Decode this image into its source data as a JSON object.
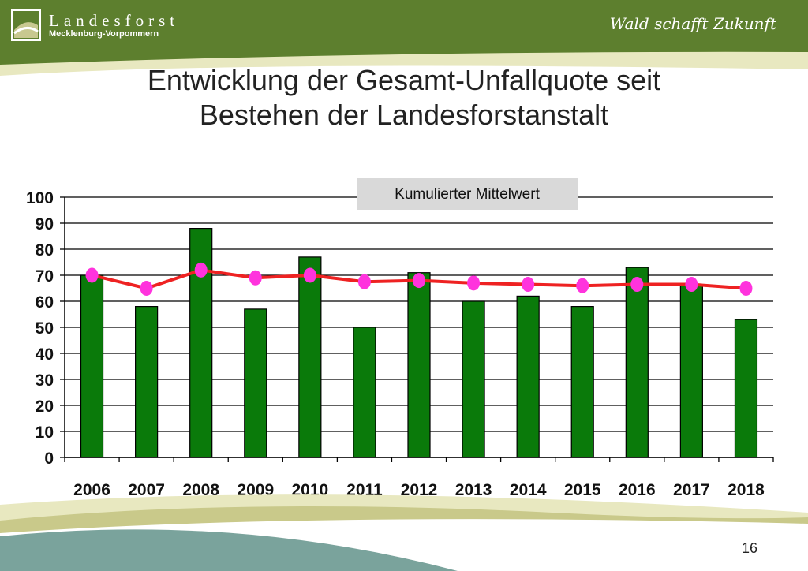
{
  "header": {
    "brand": "Landesforst",
    "brand_sub": "Mecklenburg-Vorpommern",
    "slogan": "Wald schafft Zukunft",
    "logo_icon": "landesforst-logo-icon"
  },
  "title": {
    "line1": "Entwicklung der Gesamt-Unfallquote seit",
    "line2": "Bestehen der Landesforstanstalt"
  },
  "page_number": "16",
  "colors": {
    "header_green": "#5d7f2e",
    "bar_fill": "#0a7a0a",
    "line": "#ee2222",
    "marker": "#ff33dd",
    "legend_bg": "#d9d9d9"
  },
  "chart_data": {
    "type": "bar",
    "categories": [
      "2006",
      "2007",
      "2008",
      "2009",
      "2010",
      "2011",
      "2012",
      "2013",
      "2014",
      "2015",
      "2016",
      "2017",
      "2018"
    ],
    "series": [
      {
        "values": [
          70,
          58,
          88,
          57,
          77,
          50,
          71,
          60,
          62,
          58,
          73,
          66,
          53
        ]
      },
      {
        "name": "Kumulierter Mittelwert",
        "render": "line",
        "values": [
          70,
          65,
          72,
          69,
          70,
          67.5,
          68,
          67,
          66.5,
          66,
          66.5,
          66.5,
          65
        ]
      }
    ],
    "ylim": [
      0,
      100
    ],
    "yticks": [
      0,
      10,
      20,
      30,
      40,
      50,
      60,
      70,
      80,
      90,
      100
    ],
    "grid": true,
    "legend_position": "top-right",
    "xlabel": "",
    "ylabel": ""
  }
}
